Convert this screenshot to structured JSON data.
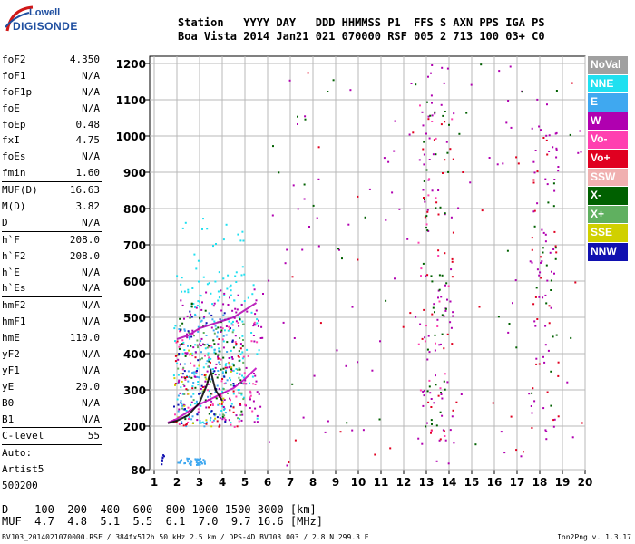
{
  "logo": {
    "line1": "Lowell",
    "line2": "DIGISONDE"
  },
  "header": {
    "line1": "Station   YYYY DAY   DDD HHMMSS P1  FFS S AXN PPS IGA PS",
    "line2": "Boa Vista 2014 Jan21 021 070000 RSF 005 2 713 100 03+ C0"
  },
  "params": [
    {
      "label": "foF2",
      "value": "4.350"
    },
    {
      "label": "foF1",
      "value": "N/A"
    },
    {
      "label": "foF1p",
      "value": "N/A"
    },
    {
      "label": "foE",
      "value": "N/A"
    },
    {
      "label": "foEp",
      "value": "0.48"
    },
    {
      "label": "fxI",
      "value": "4.75"
    },
    {
      "label": "foEs",
      "value": "N/A"
    },
    {
      "label": "fmin",
      "value": "1.60",
      "sep_after": true
    },
    {
      "label": "MUF(D)",
      "value": "16.63"
    },
    {
      "label": "M(D)",
      "value": "3.82"
    },
    {
      "label": "D",
      "value": "N/A",
      "sep_after": true
    },
    {
      "label": "h`F",
      "value": "208.0"
    },
    {
      "label": "h`F2",
      "value": "208.0"
    },
    {
      "label": "h`E",
      "value": "N/A"
    },
    {
      "label": "h`Es",
      "value": "N/A",
      "sep_after": true
    },
    {
      "label": "hmF2",
      "value": "N/A"
    },
    {
      "label": "hmF1",
      "value": "N/A"
    },
    {
      "label": "hmE",
      "value": "110.0"
    },
    {
      "label": "yF2",
      "value": "N/A"
    },
    {
      "label": "yF1",
      "value": "N/A"
    },
    {
      "label": "yE",
      "value": "20.0"
    },
    {
      "label": "B0",
      "value": "N/A"
    },
    {
      "label": "B1",
      "value": "N/A",
      "sep_after": true
    },
    {
      "label": "C-level",
      "value": "55",
      "sep_after": true
    },
    {
      "label": "Auto:",
      "value": ""
    },
    {
      "label": "Artist5",
      "value": ""
    },
    {
      "label": "500200",
      "value": ""
    }
  ],
  "legend": [
    {
      "label": "NoVal",
      "color": "#a0a0a0"
    },
    {
      "label": "NNE",
      "color": "#1fe0f0"
    },
    {
      "label": "E",
      "color": "#3fa8f0"
    },
    {
      "label": "W",
      "color": "#b000b0"
    },
    {
      "label": "Vo-",
      "color": "#ff40b0"
    },
    {
      "label": "Vo+",
      "color": "#e00020"
    },
    {
      "label": "SSW",
      "color": "#f0b0b0"
    },
    {
      "label": "X-",
      "color": "#006000"
    },
    {
      "label": "X+",
      "color": "#60b060"
    },
    {
      "label": "SSE",
      "color": "#d0d000"
    },
    {
      "label": "NNW",
      "color": "#1010b0"
    }
  ],
  "bottom": {
    "line1": "D    100  200  400  600  800 1000 1500 3000 [km]",
    "line2": "MUF  4.7  4.8  5.1  5.5  6.1  7.0  9.7 16.6 [MHz]"
  },
  "footer": "BVJ03_2014021070000.RSF / 384fx512h 50 kHz 2.5 km / DPS-4D BVJ03 003 / 2.8 N 299.3 E",
  "version": "Ion2Png v. 1.3.17",
  "chart_data": {
    "type": "scatter",
    "title": "",
    "xlabel": "",
    "ylabel": "",
    "xlim": [
      0.8,
      20
    ],
    "ylim": [
      80,
      1220
    ],
    "x_ticks": [
      1,
      2,
      3,
      4,
      5,
      6,
      7,
      8,
      9,
      10,
      11,
      12,
      13,
      14,
      15,
      16,
      17,
      18,
      19,
      20
    ],
    "y_ticks": [
      80,
      200,
      300,
      400,
      500,
      600,
      700,
      800,
      900,
      1000,
      1100,
      1200
    ],
    "grid": true,
    "legend_position": "right",
    "trace_curves": [
      {
        "name": "",
        "color": "#c000c0",
        "x": [
          1.6,
          2.0,
          2.5,
          3.0,
          3.5,
          4.0,
          4.5,
          5.0,
          5.5
        ],
        "y": [
          210,
          220,
          240,
          260,
          275,
          290,
          305,
          330,
          360
        ]
      },
      {
        "name": "",
        "color": "#b000b0",
        "x": [
          2.0,
          2.5,
          3.0,
          3.5,
          4.0,
          4.5,
          5.0,
          5.5
        ],
        "y": [
          440,
          450,
          470,
          480,
          490,
          500,
          520,
          540
        ]
      },
      {
        "name": "",
        "color": "#000000",
        "x": [
          1.6,
          2.0,
          2.5,
          3.0,
          3.3,
          3.5,
          3.7,
          4.0
        ],
        "y": [
          208,
          215,
          230,
          265,
          310,
          350,
          300,
          270
        ]
      }
    ],
    "clusters": [
      {
        "color": "#1fe0f0",
        "x_range": [
          1.8,
          5.6
        ],
        "y_range": [
          210,
          620
        ],
        "count": 160
      },
      {
        "color": "#3fa8f0",
        "x_range": [
          2.0,
          4.2
        ],
        "y_range": [
          200,
          520
        ],
        "count": 90
      },
      {
        "color": "#b000b0",
        "x_range": [
          2.0,
          5.8
        ],
        "y_range": [
          210,
          580
        ],
        "count": 140
      },
      {
        "color": "#ff40b0",
        "x_range": [
          1.8,
          5.5
        ],
        "y_range": [
          200,
          500
        ],
        "count": 70
      },
      {
        "color": "#006000",
        "x_range": [
          2.0,
          5.0
        ],
        "y_range": [
          210,
          550
        ],
        "count": 60
      },
      {
        "color": "#60b060",
        "x_range": [
          2.0,
          5.0
        ],
        "y_range": [
          210,
          500
        ],
        "count": 50
      },
      {
        "color": "#d0d000",
        "x_range": [
          1.8,
          4.5
        ],
        "y_range": [
          200,
          420
        ],
        "count": 25
      },
      {
        "color": "#e00020",
        "x_range": [
          1.8,
          5.0
        ],
        "y_range": [
          200,
          450
        ],
        "count": 40
      },
      {
        "color": "#1010b0",
        "x_range": [
          1.8,
          4.5
        ],
        "y_range": [
          200,
          520
        ],
        "count": 40
      },
      {
        "color": "#3fa8f0",
        "x_range": [
          2.0,
          3.2
        ],
        "y_range": [
          95,
          115
        ],
        "count": 45
      },
      {
        "color": "#1010b0",
        "x_range": [
          1.2,
          1.4
        ],
        "y_range": [
          95,
          125
        ],
        "count": 8
      },
      {
        "color": "#b000b0",
        "x_range": [
          12.6,
          14.2
        ],
        "y_range": [
          150,
          1200
        ],
        "count": 70
      },
      {
        "color": "#006000",
        "x_range": [
          12.8,
          14.0
        ],
        "y_range": [
          200,
          1100
        ],
        "count": 40
      },
      {
        "color": "#e00020",
        "x_range": [
          12.6,
          14.2
        ],
        "y_range": [
          150,
          1100
        ],
        "count": 35
      },
      {
        "color": "#ff40b0",
        "x_range": [
          12.6,
          14.2
        ],
        "y_range": [
          150,
          1100
        ],
        "count": 25
      },
      {
        "color": "#b000b0",
        "x_range": [
          17.6,
          18.8
        ],
        "y_range": [
          150,
          1150
        ],
        "count": 55
      },
      {
        "color": "#e00020",
        "x_range": [
          17.6,
          18.8
        ],
        "y_range": [
          150,
          1000
        ],
        "count": 25
      },
      {
        "color": "#006000",
        "x_range": [
          17.6,
          18.8
        ],
        "y_range": [
          200,
          900
        ],
        "count": 15
      },
      {
        "color": "#b000b0",
        "x_range": [
          6,
          20
        ],
        "y_range": [
          90,
          1200
        ],
        "count": 90
      },
      {
        "color": "#006000",
        "x_range": [
          6,
          20
        ],
        "y_range": [
          90,
          1200
        ],
        "count": 35
      },
      {
        "color": "#e00020",
        "x_range": [
          6,
          20
        ],
        "y_range": [
          90,
          1200
        ],
        "count": 30
      },
      {
        "color": "#1fe0f0",
        "x_range": [
          2,
          5
        ],
        "y_range": [
          620,
          780
        ],
        "count": 20
      }
    ]
  }
}
